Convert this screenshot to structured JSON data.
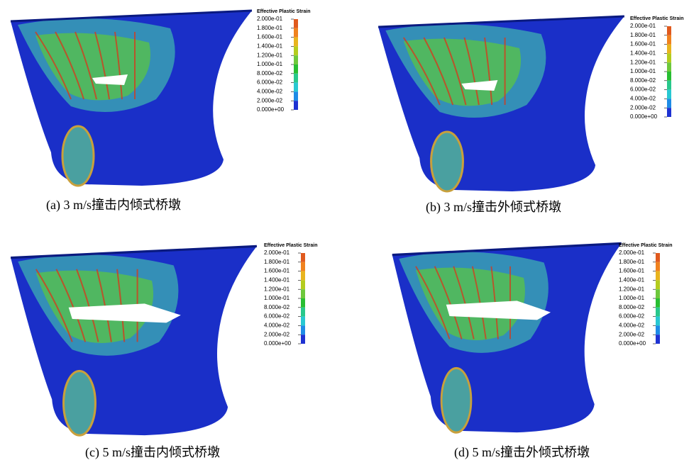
{
  "panels": [
    {
      "caption": "(a)  3 m/s撞击内倾式桥墩",
      "legend": {
        "title": "Effective Plastic Strain",
        "labels": [
          "2.000e-01",
          "1.800e-01",
          "1.600e-01",
          "1.400e-01",
          "1.200e-01",
          "1.000e-01",
          "8.000e-02",
          "6.000e-02",
          "4.000e-02",
          "2.000e-02",
          "0.000e+00"
        ]
      }
    },
    {
      "caption": "(b)  3 m/s撞击外倾式桥墩",
      "legend": {
        "title": "Effective Plastic Strain",
        "labels": [
          "2.000e-01",
          "1.800e-01",
          "1.600e-01",
          "1.400e-01",
          "1.200e-01",
          "1.000e-01",
          "8.000e-02",
          "6.000e-02",
          "4.000e-02",
          "2.000e-02",
          "0.000e+00"
        ]
      }
    },
    {
      "caption": "(c)  5 m/s撞击内倾式桥墩",
      "legend": {
        "title": "Effective Plastic Strain",
        "labels": [
          "2.000e-01",
          "1.800e-01",
          "1.600e-01",
          "1.400e-01",
          "1.200e-01",
          "1.000e-01",
          "8.000e-02",
          "6.000e-02",
          "4.000e-02",
          "2.000e-02",
          "0.000e+00"
        ]
      }
    },
    {
      "caption": "(d)  5 m/s撞击外倾式桥墩",
      "legend": {
        "title": "Effective Plastic Strain",
        "labels": [
          "2.000e-01",
          "1.800e-01",
          "1.600e-01",
          "1.400e-01",
          "1.200e-01",
          "1.000e-01",
          "8.000e-02",
          "6.000e-02",
          "4.000e-02",
          "2.000e-02",
          "0.000e+00"
        ]
      }
    }
  ]
}
